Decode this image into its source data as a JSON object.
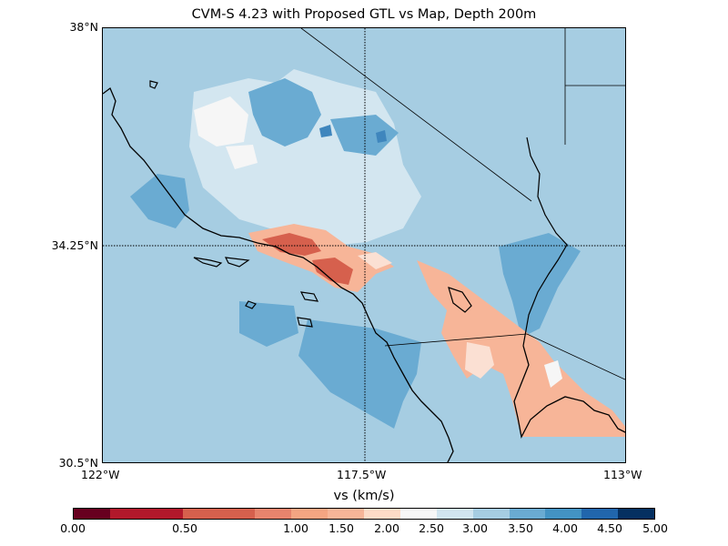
{
  "title": "CVM-S 4.23 with Proposed GTL vs Map, Depth 200m",
  "map": {
    "lat_labels": [
      "38°N",
      "34.25°N",
      "30.5°N"
    ],
    "lon_labels": [
      "122°W",
      "117.5°W",
      "113°W"
    ],
    "colors": {
      "ocean_background": "#a6cde2",
      "light_blue": "#d3e6f0",
      "near_white": "#f6f6f6",
      "medium_blue": "#6aabd2",
      "dark_blue": "#3f86bd",
      "salmon": "#f7b598",
      "light_pink": "#fbe0d3",
      "red": "#d6604d",
      "coastline": "#000000"
    }
  },
  "colorbar": {
    "label": "vs (km/s)",
    "tick_labels": [
      "0.00",
      "0.50",
      "1.00",
      "1.50",
      "2.00",
      "2.50",
      "3.00",
      "3.50",
      "4.00",
      "4.50",
      "5.00"
    ],
    "colors": [
      "#67001f",
      "#b2182b",
      "#b2182b",
      "#d6604d",
      "#d6604d",
      "#e7846d",
      "#f4a582",
      "#f7b598",
      "#fddbc7",
      "#f7f7f7",
      "#d1e5f0",
      "#a6cde2",
      "#6aabd2",
      "#4393c3",
      "#2166ac",
      "#053061"
    ]
  }
}
